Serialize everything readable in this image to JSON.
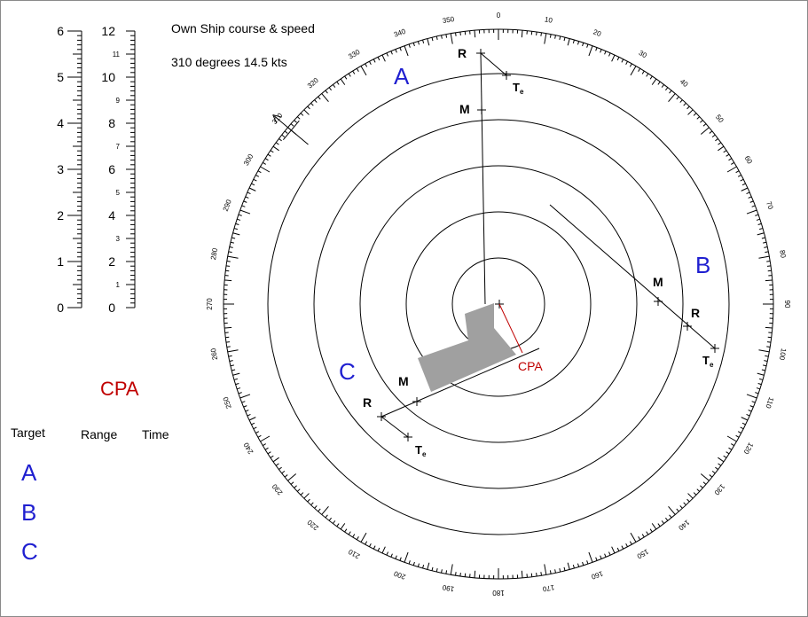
{
  "header": {
    "line1": "Own Ship course & speed",
    "line2": "310 degrees  14.5 kts"
  },
  "cpa_panel": {
    "title": "CPA",
    "columns": [
      "Target",
      "Range",
      "Time"
    ],
    "targets": [
      "A",
      "B",
      "C"
    ]
  },
  "colors": {
    "target_label": "#1f1fd0",
    "cpa": "#c00000",
    "ownship_shape": "#a0a0a0"
  },
  "scales": {
    "left": {
      "major": [
        0,
        1,
        2,
        3,
        4,
        5,
        6
      ],
      "max": 6
    },
    "right": {
      "major": [
        0,
        2,
        4,
        6,
        8,
        10,
        12
      ],
      "minor": [
        1,
        3,
        5,
        7,
        9,
        11
      ],
      "max": 12
    }
  },
  "compass": {
    "labels": [
      0,
      10,
      20,
      30,
      40,
      50,
      60,
      70,
      80,
      90,
      100,
      110,
      120,
      130,
      140,
      150,
      160,
      170,
      180,
      190,
      200,
      210,
      220,
      230,
      240,
      250,
      260,
      270,
      280,
      290,
      300,
      310,
      320,
      330,
      340,
      350
    ],
    "range_rings": 5,
    "ownship_course": 310
  },
  "plot_labels": {
    "targets": [
      "A",
      "B",
      "C"
    ],
    "report": "R",
    "mid": "M",
    "te_main": "T",
    "te_sub": "e",
    "cpa": "CPA"
  }
}
